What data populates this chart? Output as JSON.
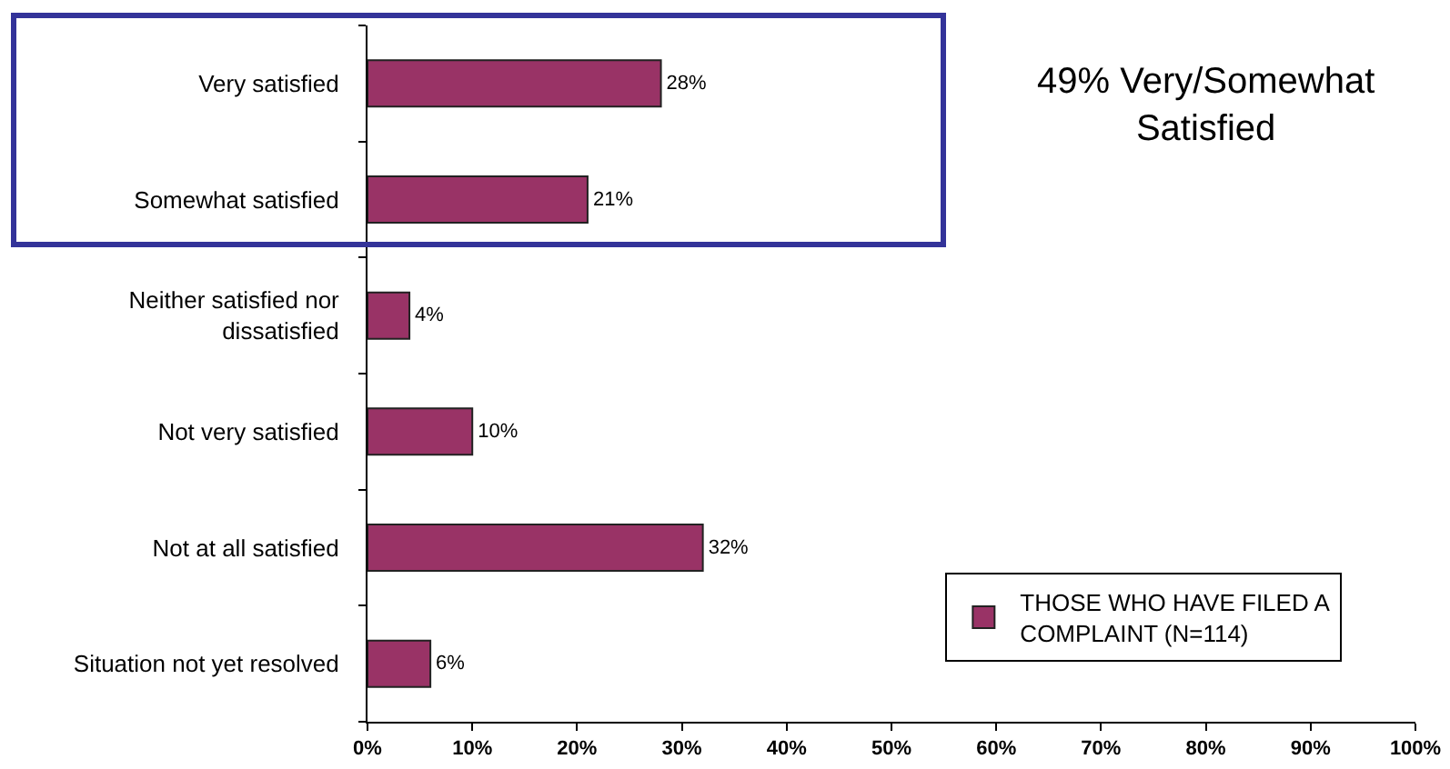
{
  "chart_data": {
    "type": "bar",
    "orientation": "horizontal",
    "categories": [
      "Very satisfied",
      "Somewhat satisfied",
      "Neither satisfied nor dissatisfied",
      "Not very satisfied",
      "Not at all satisfied",
      "Situation not yet resolved"
    ],
    "series": [
      {
        "name": "THOSE WHO HAVE FILED A COMPLAINT (N=114)",
        "color": "#993366",
        "values": [
          28,
          21,
          4,
          10,
          32,
          6
        ],
        "value_labels": [
          "28%",
          "21%",
          "4%",
          "10%",
          "32%",
          "6%"
        ]
      }
    ],
    "xlim": [
      0,
      100
    ],
    "xticks": [
      {
        "value": 0,
        "label": "0%"
      },
      {
        "value": 10,
        "label": "10%"
      },
      {
        "value": 20,
        "label": "20%"
      },
      {
        "value": 30,
        "label": "30%"
      },
      {
        "value": 40,
        "label": "40%"
      },
      {
        "value": 50,
        "label": "50%"
      },
      {
        "value": 60,
        "label": "60%"
      },
      {
        "value": 70,
        "label": "70%"
      },
      {
        "value": 80,
        "label": "80%"
      },
      {
        "value": 90,
        "label": "90%"
      },
      {
        "value": 100,
        "label": "100%"
      }
    ],
    "legend": "bottom right",
    "annotations": [
      "49% Very/Somewhat Satisfied"
    ]
  }
}
